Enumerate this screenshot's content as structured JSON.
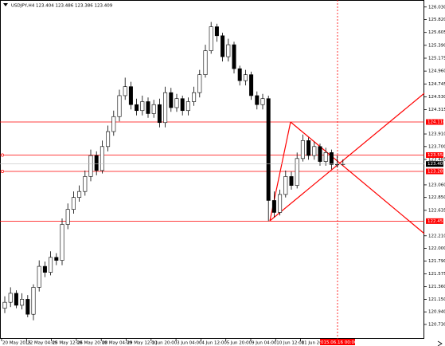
{
  "chart_data": {
    "type": "candlestick",
    "title": "USDJPY,H4 123.404 123.486 123.386 123.409",
    "x_labels": [
      "20 May 2015",
      "22 May 04:00",
      "25 May 12:00",
      "26 May 20:00",
      "28 May 04:00",
      "29 May 12:00",
      "1 Jun 20:00",
      "3 Jun 04:00",
      "4 Jun 12:00",
      "5 Jun 20:00",
      "9 Jun 04:00",
      "10 Jun 12:00",
      "11 Jun 20:00"
    ],
    "marker_label": "2015.06.16 00:00",
    "open": [
      121.0,
      121.1,
      121.25,
      121.05,
      121.15,
      120.9,
      121.35,
      121.7,
      121.6,
      121.85,
      121.8,
      122.4,
      122.65,
      122.85,
      122.95,
      123.2,
      123.55,
      123.3,
      123.7,
      123.95,
      124.2,
      124.55,
      124.7,
      124.4,
      124.3,
      124.45,
      124.25,
      124.4,
      124.1,
      124.6,
      124.35,
      124.5,
      124.3,
      124.45,
      124.6,
      124.9,
      125.3,
      125.7,
      125.55,
      125.2,
      125.4,
      125.0,
      124.8,
      124.9,
      124.55,
      124.4,
      124.5,
      122.8,
      122.6,
      122.9,
      123.2,
      123.05,
      123.5,
      123.8,
      123.55,
      123.7,
      123.45,
      123.6,
      123.4,
      123.404
    ],
    "high": [
      121.2,
      121.35,
      121.3,
      121.25,
      121.22,
      121.4,
      121.8,
      121.78,
      121.95,
      121.92,
      122.5,
      122.75,
      122.95,
      123.05,
      123.3,
      123.65,
      123.62,
      123.8,
      124.05,
      124.3,
      124.65,
      124.85,
      124.78,
      124.5,
      124.55,
      124.52,
      124.48,
      124.5,
      124.7,
      124.68,
      124.58,
      124.55,
      124.52,
      124.7,
      124.98,
      125.4,
      125.78,
      125.75,
      125.6,
      125.5,
      125.45,
      125.05,
      124.98,
      124.95,
      124.62,
      124.58,
      124.55,
      122.95,
      122.98,
      123.3,
      123.28,
      123.6,
      123.9,
      123.85,
      123.78,
      123.75,
      123.68,
      123.65,
      123.55,
      123.486
    ],
    "low": [
      120.92,
      121.02,
      121.0,
      120.98,
      120.85,
      120.8,
      121.28,
      121.52,
      121.55,
      121.72,
      121.72,
      122.32,
      122.58,
      122.78,
      122.88,
      123.12,
      123.22,
      123.25,
      123.62,
      123.88,
      124.12,
      124.48,
      124.32,
      124.22,
      124.22,
      124.18,
      124.18,
      124.02,
      124.02,
      124.28,
      124.28,
      124.22,
      124.22,
      124.38,
      124.52,
      124.85,
      125.25,
      125.45,
      125.12,
      125.12,
      124.92,
      124.72,
      124.72,
      124.48,
      124.32,
      124.32,
      122.455,
      122.52,
      122.55,
      122.85,
      122.98,
      123.0,
      123.45,
      123.48,
      123.48,
      123.38,
      123.38,
      123.32,
      123.35,
      123.386
    ],
    "close": [
      121.1,
      121.25,
      121.05,
      121.15,
      120.9,
      121.35,
      121.7,
      121.6,
      121.85,
      121.8,
      122.4,
      122.65,
      122.85,
      122.95,
      123.2,
      123.55,
      123.3,
      123.7,
      123.95,
      124.2,
      124.55,
      124.7,
      124.4,
      124.3,
      124.45,
      124.25,
      124.4,
      124.1,
      124.6,
      124.35,
      124.5,
      124.3,
      124.45,
      124.6,
      124.9,
      125.3,
      125.7,
      125.55,
      125.2,
      125.4,
      125.0,
      124.8,
      124.9,
      124.55,
      124.4,
      124.5,
      122.8,
      122.6,
      122.9,
      123.2,
      123.05,
      123.5,
      123.8,
      123.55,
      123.7,
      123.45,
      123.6,
      123.4,
      123.404,
      123.409
    ],
    "up_color": "#ffffff",
    "down_color": "#000000",
    "levels": [
      {
        "value": 124.11,
        "label": "124.110"
      },
      {
        "value": 123.558,
        "label": "123.558"
      },
      {
        "value": 123.285,
        "label": "123.285"
      },
      {
        "value": 122.455,
        "label": "122.455"
      }
    ],
    "level_color": "#ff0000",
    "current": {
      "value": 123.409,
      "label": "123.409"
    },
    "ylim": [
      120.49,
      126.12
    ],
    "yticks": [
      {
        "value": 126.03,
        "label": "126.030"
      },
      {
        "value": 125.82,
        "label": "125.820"
      },
      125.605,
      {
        "value": 125.39,
        "label": "125.390"
      },
      125.175,
      {
        "value": 124.96,
        "label": "124.960"
      },
      124.745,
      {
        "value": 124.53,
        "label": "124.530"
      },
      124.315,
      {
        "value": 123.91,
        "label": "123.910"
      },
      {
        "value": 123.7,
        "label": "123.700"
      },
      123.485,
      {
        "value": 123.06,
        "label": "123.060"
      },
      {
        "value": 122.85,
        "label": "122.850"
      },
      122.635,
      {
        "value": 122.21,
        "label": "122.210"
      },
      {
        "value": 122.0,
        "label": "122.000"
      },
      {
        "value": 121.79,
        "label": "121.790"
      },
      121.575,
      {
        "value": 121.36,
        "label": "121.360"
      },
      {
        "value": 121.15,
        "label": "121.150"
      },
      {
        "value": 120.94,
        "label": "120.940"
      },
      {
        "value": 120.73,
        "label": "120.730"
      }
    ]
  }
}
